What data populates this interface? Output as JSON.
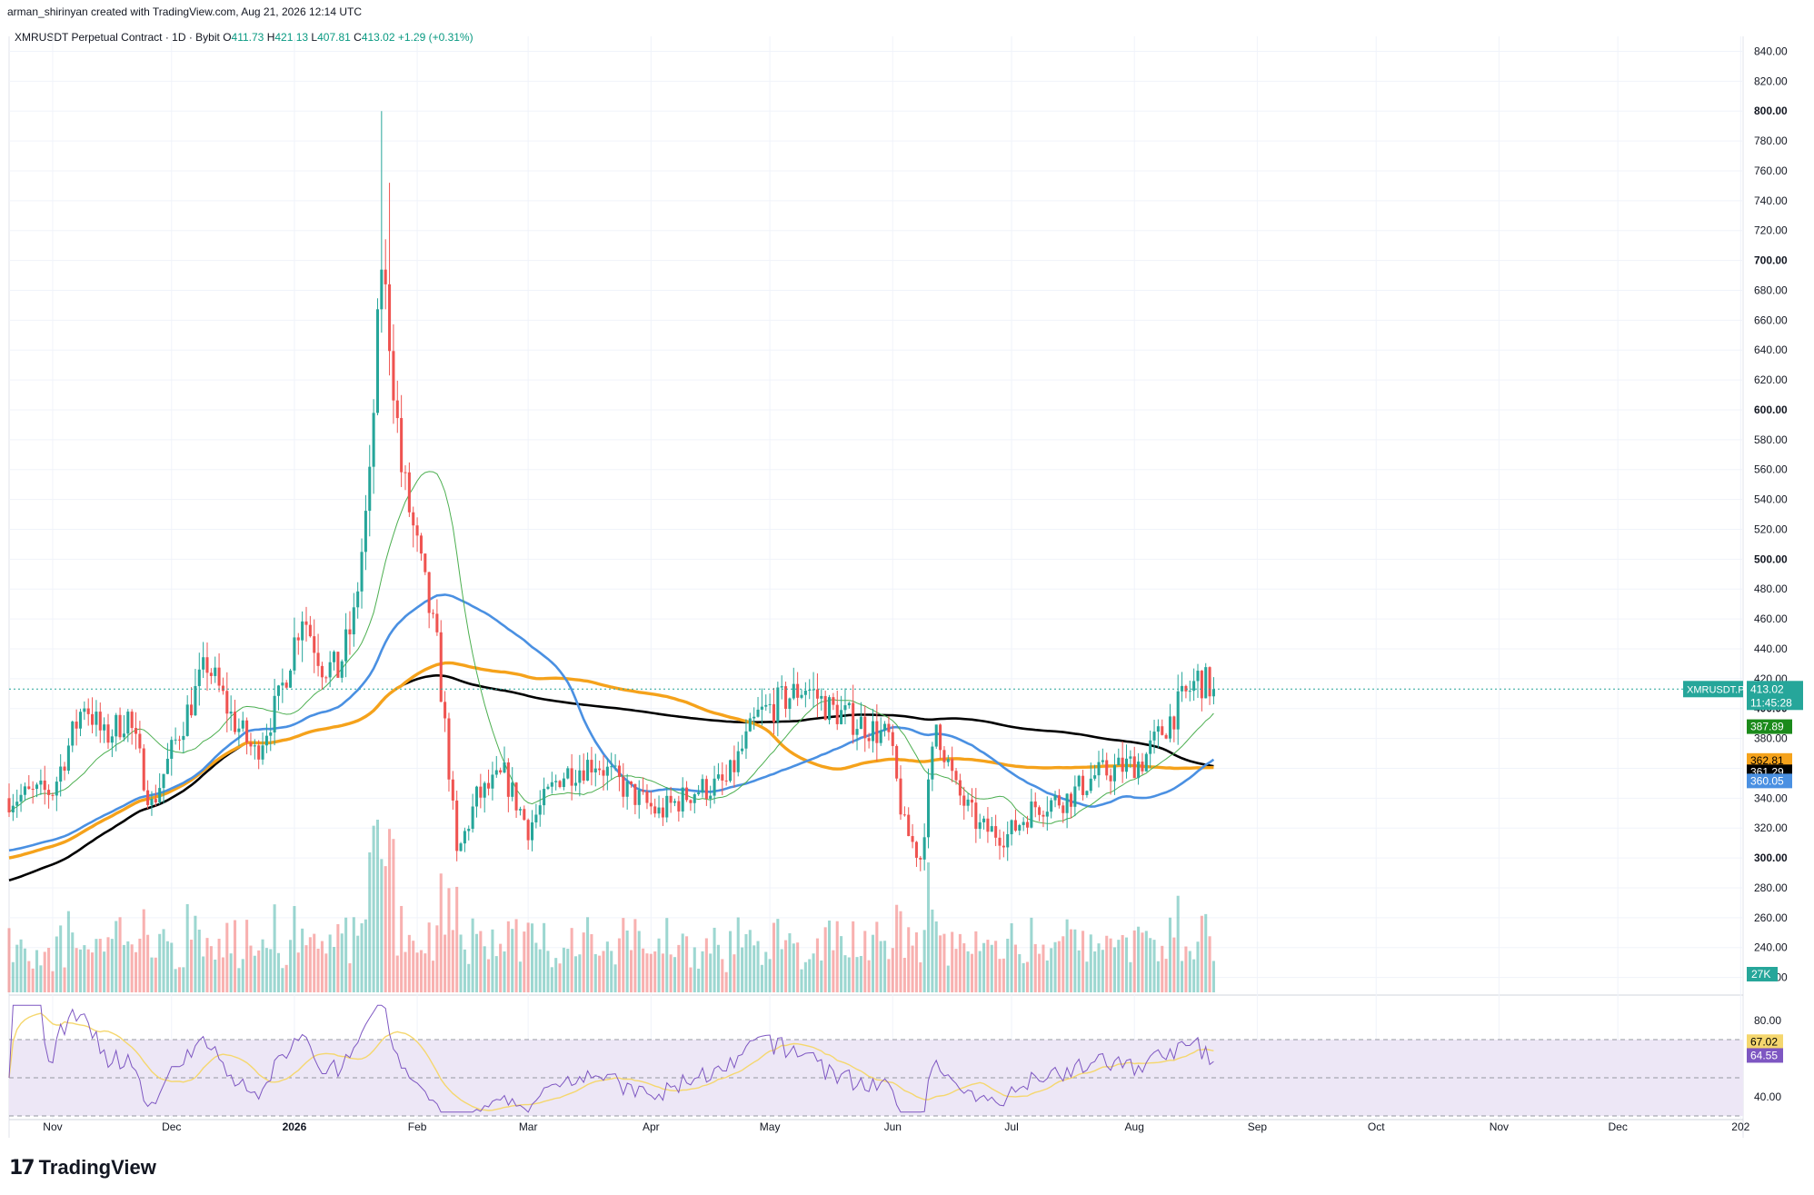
{
  "header": {
    "credit": "arman_shirinyan created with TradingView.com, Aug 21, 2026 12:14 UTC"
  },
  "legend": {
    "symbol": "XMRUSDT Perpetual Contract · 1D · Bybit",
    "o_label": "O",
    "o": "411.73",
    "h_label": "H",
    "h": "421.13",
    "l_label": "L",
    "l": "407.81",
    "c_label": "C",
    "c": "413.02",
    "change": "+1.29 (+0.31%)"
  },
  "brand": {
    "name": "TradingView",
    "logo_icon": "tradingview-logo-icon"
  },
  "colors": {
    "up": "#26a69a",
    "down": "#ef5350",
    "sma20": "#4caf50",
    "sma50": "#4a90e2",
    "sma100": "#f5a21b",
    "sma200": "#000000",
    "rsi": "#7e57c2",
    "rsi_ma": "#f5d76e",
    "rsi_band": "#ede7f6"
  },
  "chart_data": [
    {
      "type": "candlestick",
      "ylim": [
        210,
        850
      ],
      "price_ticks": [
        "840.00",
        "820.00",
        "800.00",
        "780.00",
        "760.00",
        "740.00",
        "720.00",
        "700.00",
        "680.00",
        "660.00",
        "640.00",
        "620.00",
        "600.00",
        "580.00",
        "560.00",
        "540.00",
        "520.00",
        "500.00",
        "480.00",
        "460.00",
        "440.00",
        "420.00",
        "400.00",
        "380.00",
        "360.00",
        "340.00",
        "320.00",
        "300.00",
        "280.00",
        "260.00",
        "240.00",
        "220.00"
      ],
      "time_ticks": [
        "Nov",
        "Dec",
        "2026",
        "Feb",
        "Mar",
        "Apr",
        "May",
        "Jun",
        "Jul",
        "Aug",
        "Sep",
        "Oct",
        "Nov",
        "Dec",
        "202"
      ],
      "key_points": [
        {
          "x": "Oct 21",
          "y": 340
        },
        {
          "x": "Nov 1",
          "y": 345
        },
        {
          "x": "Nov 9",
          "y": 405
        },
        {
          "x": "Nov 14",
          "y": 380
        },
        {
          "x": "Nov 20",
          "y": 395
        },
        {
          "x": "Nov 26",
          "y": 335
        },
        {
          "x": "Dec 3",
          "y": 385
        },
        {
          "x": "Dec 10",
          "y": 430
        },
        {
          "x": "Dec 16",
          "y": 395
        },
        {
          "x": "Dec 22",
          "y": 370
        },
        {
          "x": "Dec 28",
          "y": 405
        },
        {
          "x": "Jan 3",
          "y": 465
        },
        {
          "x": "Jan 8",
          "y": 430
        },
        {
          "x": "Jan 12",
          "y": 425
        },
        {
          "x": "Jan 16",
          "y": 460
        },
        {
          "x": "Jan 20",
          "y": 550
        },
        {
          "x": "Jan 23",
          "y": 700
        },
        {
          "x": "Jan 25",
          "y": 650
        },
        {
          "x": "Jan 28",
          "y": 560
        },
        {
          "x": "Jan 31",
          "y": 520
        },
        {
          "x": "Feb 3",
          "y": 480
        },
        {
          "x": "Feb 6",
          "y": 440
        },
        {
          "x": "Feb 9",
          "y": 360
        },
        {
          "x": "Feb 11",
          "y": 300
        },
        {
          "x": "Feb 16",
          "y": 340
        },
        {
          "x": "Feb 23",
          "y": 355
        },
        {
          "x": "Mar 1",
          "y": 320
        },
        {
          "x": "Mar 9",
          "y": 355
        },
        {
          "x": "Mar 18",
          "y": 365
        },
        {
          "x": "Mar 26",
          "y": 345
        },
        {
          "x": "Apr 3",
          "y": 330
        },
        {
          "x": "Apr 12",
          "y": 345
        },
        {
          "x": "Apr 20",
          "y": 350
        },
        {
          "x": "Apr 28",
          "y": 395
        },
        {
          "x": "May 4",
          "y": 405
        },
        {
          "x": "May 10",
          "y": 415
        },
        {
          "x": "May 16",
          "y": 400
        },
        {
          "x": "May 24",
          "y": 390
        },
        {
          "x": "May 31",
          "y": 380
        },
        {
          "x": "Jun 4",
          "y": 320
        },
        {
          "x": "Jun 8",
          "y": 300
        },
        {
          "x": "Jun 12",
          "y": 390
        },
        {
          "x": "Jun 17",
          "y": 345
        },
        {
          "x": "Jun 23",
          "y": 320
        },
        {
          "x": "Jun 30",
          "y": 315
        },
        {
          "x": "Jul 7",
          "y": 335
        },
        {
          "x": "Jul 15",
          "y": 340
        },
        {
          "x": "Jul 22",
          "y": 355
        },
        {
          "x": "Jul 28",
          "y": 360
        },
        {
          "x": "Aug 3",
          "y": 365
        },
        {
          "x": "Aug 8",
          "y": 385
        },
        {
          "x": "Aug 13",
          "y": 405
        },
        {
          "x": "Aug 17",
          "y": 420
        },
        {
          "x": "Aug 21",
          "y": 413.02
        }
      ],
      "price_labels": [
        {
          "name": "XMRUSDT.P",
          "value": "413.02",
          "sub": "11:45:28",
          "color": "#26a69a"
        },
        {
          "value": "387.89",
          "color": "#1b8a1b"
        },
        {
          "value": "362.81",
          "color": "#f5a21b"
        },
        {
          "value": "361.29",
          "color": "#000000"
        },
        {
          "value": "360.05",
          "color": "#4a90e2"
        }
      ],
      "volume_label": "27K"
    },
    {
      "type": "line",
      "ylim": [
        30,
        90
      ],
      "rsi_ticks": [
        "80.00",
        "60.00",
        "40.00"
      ],
      "rsi_labels": [
        {
          "value": "67.02",
          "color": "#f5d76e"
        },
        {
          "value": "64.55",
          "color": "#7e57c2"
        }
      ],
      "bands": [
        70,
        50,
        30
      ]
    }
  ]
}
